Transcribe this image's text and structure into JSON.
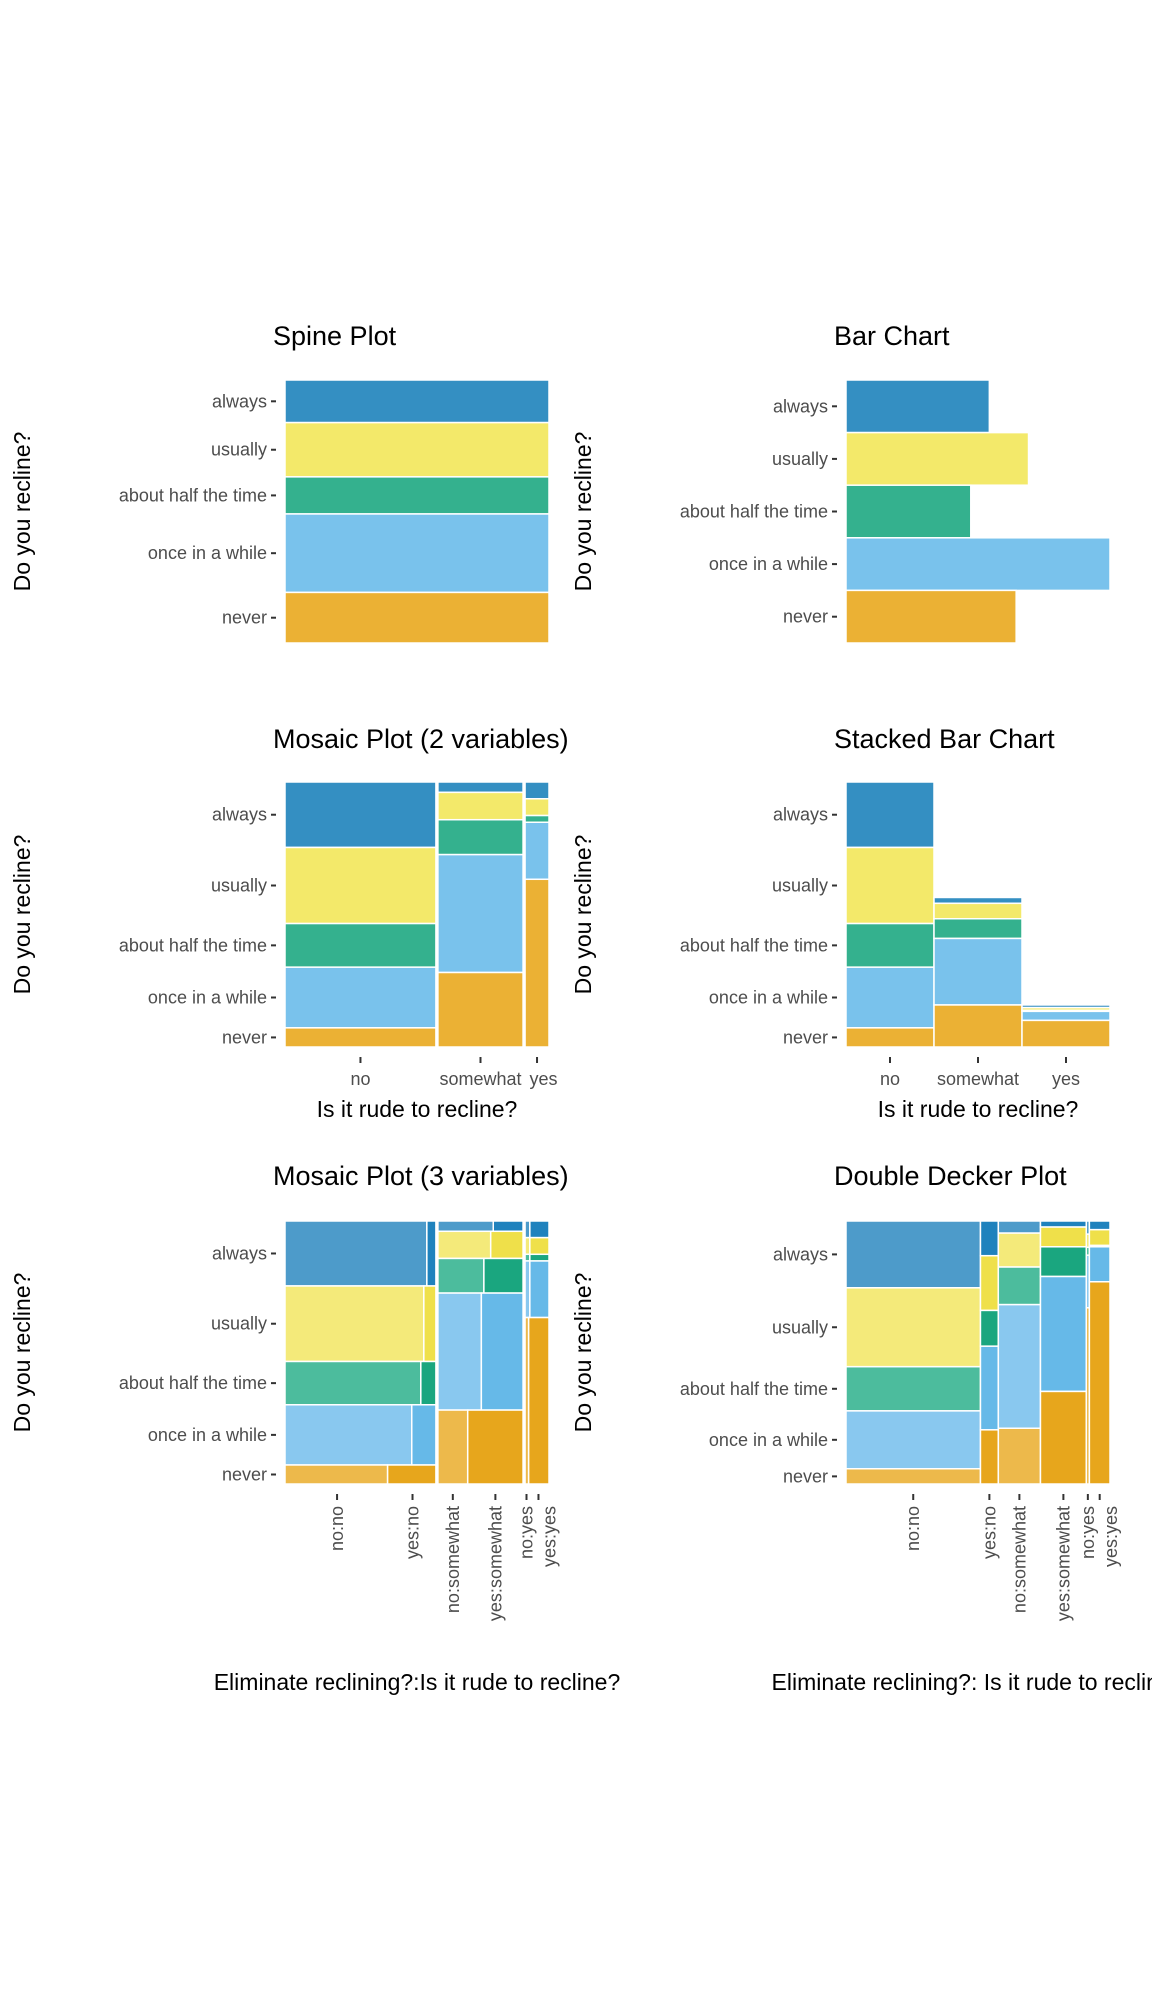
{
  "colors": {
    "always": {
      "base": "#348fc2",
      "no": "#4d9bca",
      "yes": "#1f82bd"
    },
    "usually": {
      "base": "#f3e96a",
      "no": "#f4ea7a",
      "yes": "#efe04a"
    },
    "about half the time": {
      "base": "#34b18e",
      "no": "#4cbc9d",
      "yes": "#1aa67f"
    },
    "once in a while": {
      "base": "#79c2ec",
      "no": "#89c8ef",
      "yes": "#66b9e8"
    },
    "never": {
      "base": "#ebb134",
      "no": "#edb94b",
      "yes": "#e7a61c"
    }
  },
  "recline_levels": [
    "always",
    "usually",
    "about half the time",
    "once in a while",
    "never"
  ],
  "chart_data": [
    {
      "type": "bar",
      "variant": "spine",
      "title": "Spine Plot",
      "ylabel": "Do you recline?",
      "xlabel": "",
      "categories": [
        "always",
        "usually",
        "about half the time",
        "once in a while",
        "never"
      ],
      "values": [
        139,
        177,
        121,
        256,
        165
      ]
    },
    {
      "type": "bar",
      "variant": "horizontal",
      "title": "Bar Chart",
      "ylabel": "Do you recline?",
      "xlabel": "",
      "categories": [
        "always",
        "usually",
        "about half the time",
        "once in a while",
        "never"
      ],
      "values": [
        139,
        177,
        121,
        256,
        165
      ]
    },
    {
      "type": "bar",
      "variant": "mosaic",
      "title": "Mosaic Plot (2 variables)",
      "ylabel": "Do you recline?",
      "xlabel": "Is it rude to recline?",
      "x_categories": [
        "no",
        "somewhat",
        "yes"
      ],
      "categories": [
        "always",
        "usually",
        "about half the time",
        "once in a while",
        "never"
      ],
      "series": [
        {
          "group": "no",
          "values": [
            123,
            143,
            82,
            114,
            36
          ]
        },
        {
          "group": "somewhat",
          "values": [
            11,
            29,
            37,
            125,
            79
          ]
        },
        {
          "group": "yes",
          "values": [
            5,
            5,
            2,
            17,
            50
          ]
        }
      ]
    },
    {
      "type": "bar",
      "variant": "stacked",
      "title": "Stacked Bar Chart",
      "ylabel": "Do you recline?",
      "xlabel": "Is it rude to recline?",
      "x_categories": [
        "no",
        "somewhat",
        "yes"
      ],
      "categories": [
        "always",
        "usually",
        "about half the time",
        "once in a while",
        "never"
      ],
      "series": [
        {
          "group": "no",
          "values": [
            123,
            143,
            82,
            114,
            36
          ]
        },
        {
          "group": "somewhat",
          "values": [
            11,
            29,
            37,
            125,
            79
          ]
        },
        {
          "group": "yes",
          "values": [
            5,
            5,
            2,
            17,
            50
          ]
        }
      ]
    },
    {
      "type": "bar",
      "variant": "mosaic3",
      "title": "Mosaic Plot (3 variables)",
      "ylabel": "Do you recline?",
      "xlabel": "Eliminate reclining?:Is it rude to recline?",
      "x_categories": [
        "no:no",
        "yes:no",
        "no:somewhat",
        "yes:somewhat",
        "no:yes",
        "yes:yes"
      ],
      "groups": [
        "no",
        "somewhat",
        "yes"
      ],
      "categories": [
        "always",
        "usually",
        "about half the time",
        "once in a while",
        "never"
      ],
      "series": [
        {
          "group": "no",
          "values": [
            123,
            143,
            82,
            114,
            36
          ],
          "eliminate_yes_share": [
            0.06,
            0.08,
            0.1,
            0.16,
            0.32
          ],
          "eliminate_no_share_overall": 0.69
        },
        {
          "group": "somewhat",
          "values": [
            11,
            29,
            37,
            125,
            79
          ],
          "eliminate_yes_share": [
            0.35,
            0.38,
            0.46,
            0.49,
            0.65
          ],
          "eliminate_no_share_overall": 0.35
        },
        {
          "group": "yes",
          "values": [
            5,
            5,
            2,
            17,
            50
          ],
          "eliminate_yes_share": [
            0.8,
            0.8,
            0.8,
            0.8,
            0.85
          ],
          "eliminate_no_share_overall": 0.12
        }
      ]
    },
    {
      "type": "bar",
      "variant": "double-decker",
      "title": "Double Decker Plot",
      "ylabel": "Do you recline?",
      "xlabel": "Eliminate reclining?: Is it rude to recline?",
      "x_categories": [
        "no:no",
        "yes:no",
        "no:somewhat",
        "yes:somewhat",
        "no:yes",
        "yes:yes"
      ],
      "eliminate": [
        "no",
        "yes",
        "no",
        "yes",
        "no",
        "yes"
      ],
      "column_totals": [
        437,
        58,
        137,
        149,
        10,
        67
      ],
      "categories": [
        "always",
        "usually",
        "about half the time",
        "once in a while",
        "never"
      ],
      "shares": [
        [
          0.254,
          0.3,
          0.168,
          0.22,
          0.058
        ],
        [
          0.132,
          0.208,
          0.136,
          0.318,
          0.206
        ],
        [
          0.046,
          0.129,
          0.143,
          0.47,
          0.212
        ],
        [
          0.023,
          0.075,
          0.113,
          0.437,
          0.352
        ],
        [
          0.05,
          0.05,
          0.03,
          0.2,
          0.67
        ],
        [
          0.033,
          0.06,
          0.005,
          0.133,
          0.769
        ]
      ]
    }
  ]
}
